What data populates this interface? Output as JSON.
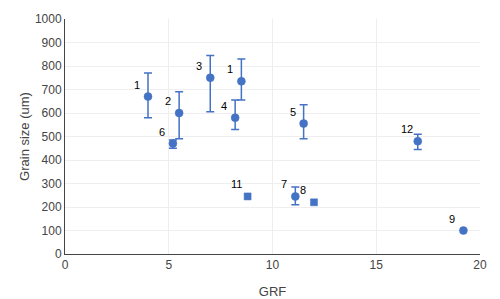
{
  "chart_data": {
    "type": "scatter",
    "xlabel": "GRF",
    "ylabel": "Grain size (um)",
    "x": [
      4.0,
      5.5,
      7.0,
      8.2,
      11.5,
      5.2,
      11.1,
      12.0,
      19.2,
      8.8,
      17.0,
      8.5
    ],
    "values": [
      670,
      600,
      750,
      580,
      555,
      470,
      245,
      220,
      100,
      245,
      480,
      735
    ],
    "error_low": [
      90,
      110,
      145,
      50,
      65,
      20,
      35,
      0,
      0,
      0,
      35,
      80
    ],
    "error_high": [
      100,
      90,
      95,
      75,
      80,
      15,
      40,
      0,
      0,
      0,
      30,
      95
    ],
    "labels": [
      "1",
      "2",
      "3",
      "4",
      "5",
      "6",
      "7",
      "8",
      "9",
      "11",
      "12",
      "1"
    ],
    "markers": [
      "circle",
      "circle",
      "circle",
      "circle",
      "circle",
      "circle",
      "circle",
      "square",
      "circle",
      "square",
      "circle",
      "circle"
    ],
    "color": "#4472C4",
    "xlim": [
      0,
      20
    ],
    "ylim": [
      0,
      1000
    ],
    "xticks": [
      0,
      5,
      10,
      15,
      20
    ],
    "yticks": [
      0,
      100,
      200,
      300,
      400,
      500,
      600,
      700,
      800,
      900,
      1000
    ],
    "grid": true
  }
}
